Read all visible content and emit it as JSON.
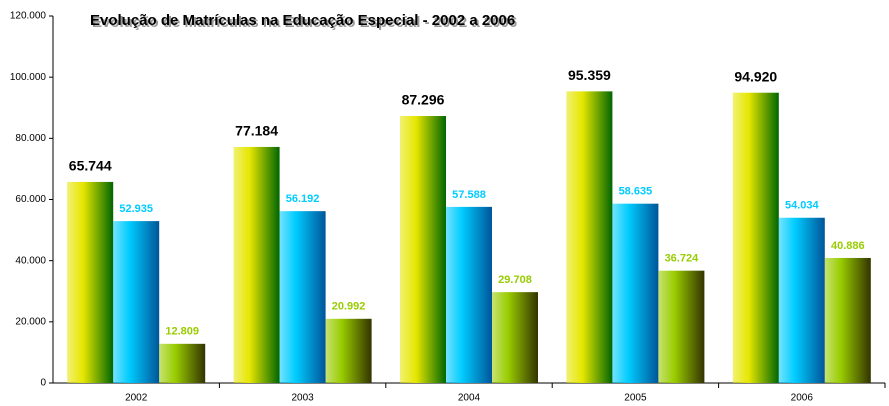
{
  "chart_data": {
    "type": "bar",
    "title": "Evolução de Matrículas na Educação Especial - 2002 a 2006",
    "categories": [
      "2002",
      "2003",
      "2004",
      "2005",
      "2006"
    ],
    "series": [
      {
        "color": "#e6e600",
        "label_color": "#000000",
        "values": [
          65744,
          77184,
          87296,
          95359,
          94920
        ],
        "value_labels": [
          "65.744",
          "77.184",
          "87.296",
          "95.359",
          "94.920"
        ]
      },
      {
        "color": "#00ccff",
        "label_color": "#00ccff",
        "values": [
          52935,
          56192,
          57588,
          58635,
          54034
        ],
        "value_labels": [
          "52.935",
          "56.192",
          "57.588",
          "58.635",
          "54.034"
        ]
      },
      {
        "color": "#99cc00",
        "label_color": "#99cc00",
        "values": [
          12809,
          20992,
          29708,
          36724,
          40886
        ],
        "value_labels": [
          "12.809",
          "20.992",
          "29.708",
          "36.724",
          "40.886"
        ]
      }
    ],
    "ylim": [
      0,
      120000
    ],
    "yticks": [
      0,
      {
        "value": 20000,
        "label": "20.000"
      },
      {
        "value": 40000,
        "label": "40.000"
      },
      {
        "value": 60000,
        "label": "60.000"
      },
      {
        "value": 80000,
        "label": "80.000"
      },
      {
        "value": 100000,
        "label": "100.000"
      },
      {
        "value": 120000,
        "label": "120.000"
      }
    ],
    "grid": false
  }
}
